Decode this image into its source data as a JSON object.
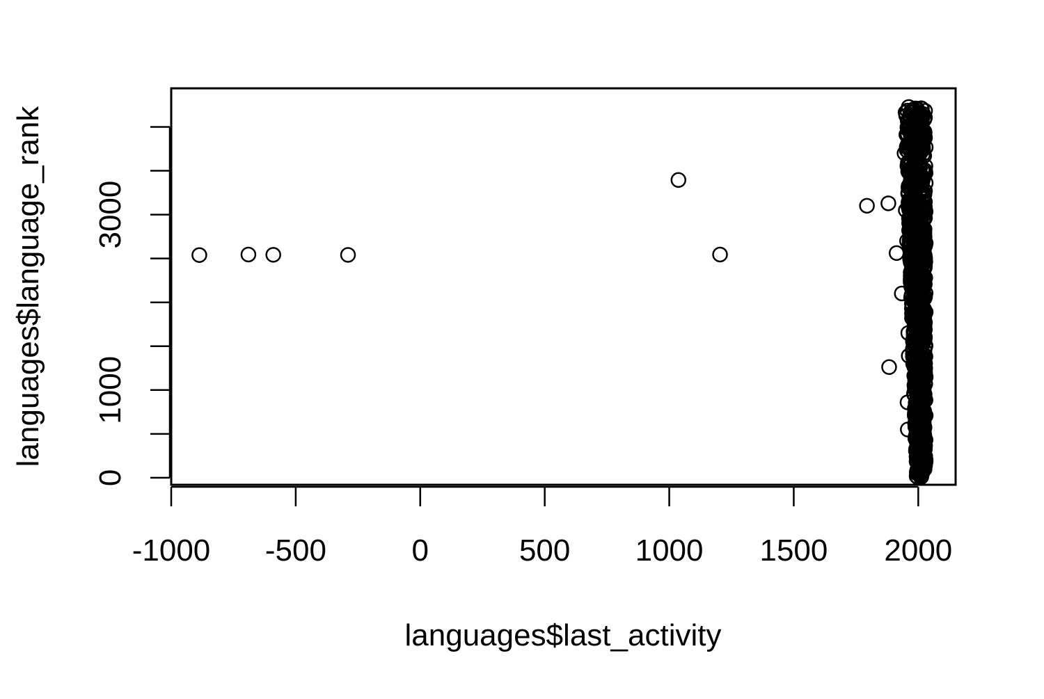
{
  "chart_data": {
    "type": "scatter",
    "title": "",
    "xlabel": "languages$last_activity",
    "ylabel": "languages$language_rank",
    "xlim": [
      -1000,
      2150
    ],
    "ylim": [
      -80,
      4440
    ],
    "x_ticks": [
      -1000,
      -500,
      0,
      500,
      1000,
      1500,
      2000
    ],
    "x_tick_labels": [
      "-1000",
      "-500",
      "0",
      "500",
      "1000",
      "1500",
      "2000"
    ],
    "y_ticks": [
      0,
      500,
      1000,
      1500,
      2000,
      2500,
      3000,
      3500,
      4000
    ],
    "y_tick_labels": [
      "0",
      "",
      "1000",
      "",
      "",
      "",
      "3000",
      "",
      ""
    ],
    "grid": false,
    "marker": "open-circle",
    "color": "#000000",
    "points": [
      {
        "x": -887,
        "y": 2539
      },
      {
        "x": -690,
        "y": 2545
      },
      {
        "x": -590,
        "y": 2542
      },
      {
        "x": -290,
        "y": 2541
      },
      {
        "x": 1037,
        "y": 3395
      },
      {
        "x": 1204,
        "y": 2545
      },
      {
        "x": 1794,
        "y": 3101
      },
      {
        "x": 1880,
        "y": 3129
      },
      {
        "x": 1883,
        "y": 1262
      },
      {
        "x": 1913,
        "y": 2562
      },
      {
        "x": 1934,
        "y": 2101
      },
      {
        "x": 1945,
        "y": 3700
      },
      {
        "x": 1950,
        "y": 3050
      },
      {
        "x": 1955,
        "y": 2700
      },
      {
        "x": 1957,
        "y": 860
      },
      {
        "x": 1958,
        "y": 550
      },
      {
        "x": 1960,
        "y": 1650
      },
      {
        "x": 1962,
        "y": 1390
      }
    ],
    "dense_cluster": {
      "x_range": [
        1948,
        2030
      ],
      "y_range": [
        0,
        4230
      ],
      "count": 1000
    }
  }
}
